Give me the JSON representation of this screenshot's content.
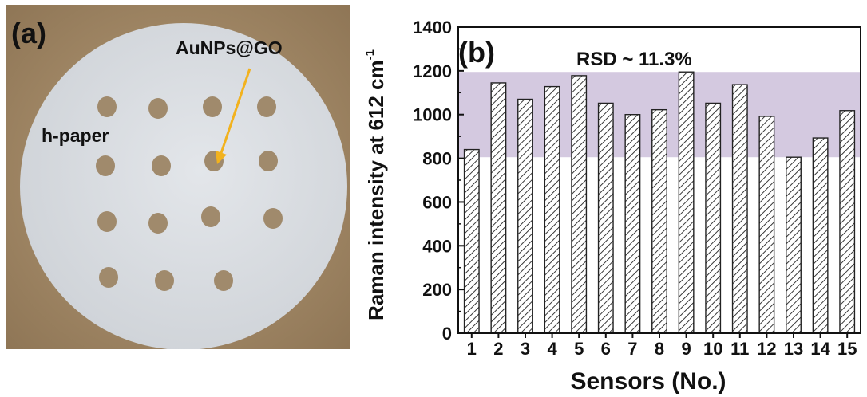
{
  "panel_a": {
    "label": "(a)",
    "annotation_spot": "AuNPs@GO",
    "annotation_paper": "h-paper",
    "colors": {
      "dish": "#a88e6a",
      "paper": "#d9dde1",
      "spot": "#a08a6c",
      "arrow": "#f2b21e"
    }
  },
  "chart_data": {
    "type": "bar",
    "panel_label": "(b)",
    "annotation": "RSD ~ 11.3%",
    "title": "",
    "xlabel": "Sensors (No.)",
    "ylabel": "Raman intensity at 612 cm",
    "ylabel_superscript": "-1",
    "categories": [
      "1",
      "2",
      "3",
      "4",
      "5",
      "6",
      "7",
      "8",
      "9",
      "10",
      "11",
      "12",
      "13",
      "14",
      "15"
    ],
    "values": [
      840,
      1145,
      1070,
      1128,
      1178,
      1052,
      1000,
      1022,
      1195,
      1052,
      1137,
      992,
      805,
      893,
      1018
    ],
    "ylim": [
      0,
      1400
    ],
    "yticks": [
      0,
      200,
      400,
      600,
      800,
      1000,
      1200,
      1400
    ],
    "band": [
      805,
      1195
    ],
    "bar_pattern": "hatched",
    "grid": false,
    "colors": {
      "band": "#d4c9e0",
      "bar_stroke": "#222222"
    }
  }
}
